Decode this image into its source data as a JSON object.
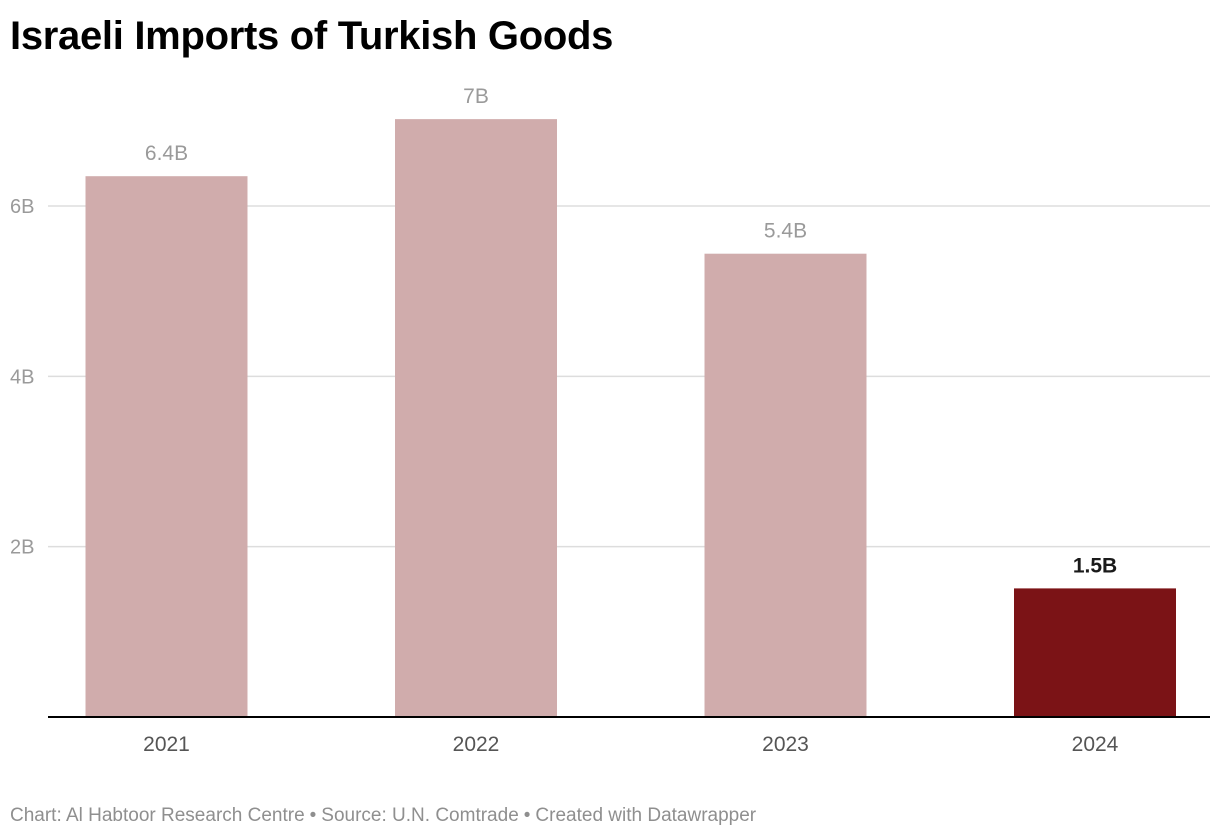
{
  "title": "Israeli Imports of Turkish Goods",
  "chart_data": {
    "type": "bar",
    "title": "Israeli Imports of Turkish Goods",
    "categories": [
      "2021",
      "2022",
      "2023",
      "2024"
    ],
    "values": [
      6.35,
      7.02,
      5.44,
      1.51
    ],
    "value_labels": [
      "6.4B",
      "7B",
      "5.4B",
      "1.5B"
    ],
    "ylim": [
      0,
      7.5
    ],
    "yticks": [
      {
        "value": 2,
        "label": "2B"
      },
      {
        "value": 4,
        "label": "4B"
      },
      {
        "value": 6,
        "label": "6B"
      }
    ],
    "xlabel": "",
    "ylabel": "",
    "grid": true,
    "legend": "none",
    "colors": {
      "bar": "#d0acac",
      "highlight_bar": "#7b1316",
      "label": "#9a9a9a",
      "highlight_label": "#1a1a1a",
      "gridline": "#dddddd",
      "baseline": "#000000",
      "tick_label": "#9a9a9a",
      "category_label": "#555555"
    },
    "highlight_index": 3
  },
  "footer": {
    "chart_credit": "Chart: Al Habtoor Research Centre",
    "source": "Source: U.N. Comtrade",
    "created_with": "Created with Datawrapper",
    "separator": "•"
  }
}
